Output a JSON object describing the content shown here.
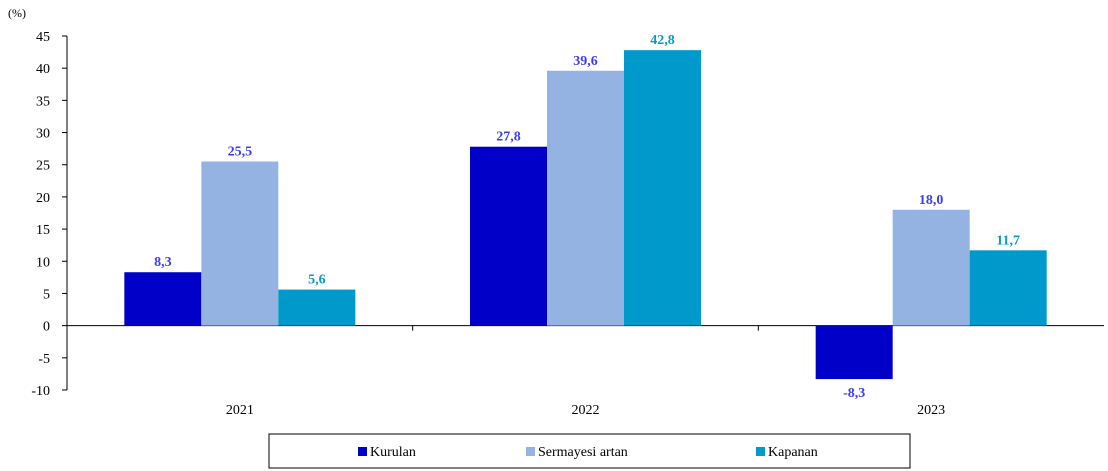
{
  "chart_data": {
    "type": "bar",
    "unit_label": "(%)",
    "categories": [
      "2021",
      "2022",
      "2023"
    ],
    "series": [
      {
        "name": "Kurulan",
        "values": [
          8.3,
          27.8,
          -8.3
        ],
        "labels": [
          "8,3",
          "27,8",
          "-8,3"
        ],
        "color": "#0000c8",
        "label_color": "#3d3df0"
      },
      {
        "name": "Sermayesi artan",
        "values": [
          25.5,
          39.6,
          18.0
        ],
        "labels": [
          "25,5",
          "39,6",
          "18,0"
        ],
        "color": "#95b3e2",
        "label_color": "#3d3df0"
      },
      {
        "name": "Kapanan",
        "values": [
          5.6,
          42.8,
          11.7
        ],
        "labels": [
          "5,6",
          "42,8",
          "11,7"
        ],
        "color": "#0099cc",
        "label_color": "#0a98c8"
      }
    ],
    "ylim": [
      -10,
      45
    ],
    "yticks": [
      45,
      40,
      35,
      30,
      25,
      20,
      15,
      10,
      5,
      0,
      -5,
      -10
    ],
    "ytick_labels": [
      "45",
      "40",
      "35",
      "30",
      "25",
      "20",
      "15",
      "10",
      "5",
      "0",
      "-5",
      "-10"
    ],
    "grid": false,
    "legend_position": "bottom"
  }
}
